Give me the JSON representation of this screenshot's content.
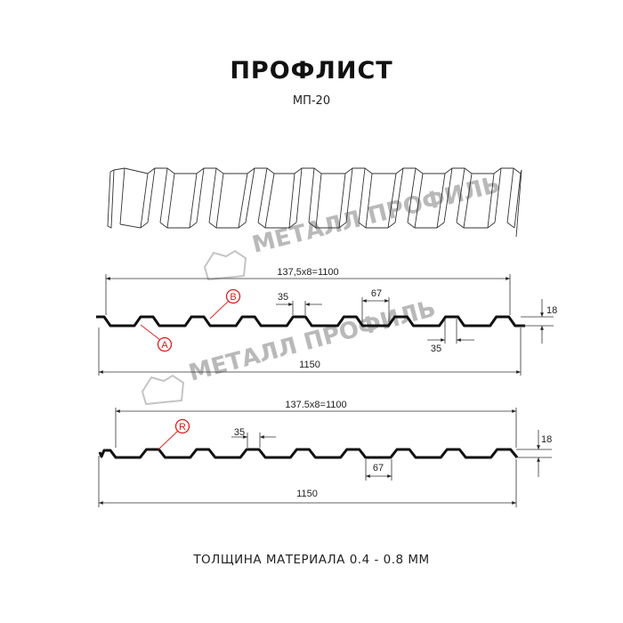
{
  "title": "ПРОФЛИСТ",
  "subtitle": "МП-20",
  "footer": "ТОЛЩИНА МАТЕРИАЛА 0.4 - 0.8 ММ",
  "watermark": "МЕТАЛЛ ПРОФИЛЬ",
  "colors": {
    "profile": "#111111",
    "marker": "#e01b1b",
    "watermark": "#b9b9b9"
  },
  "profile_a": {
    "pitch_label": "137,5x8=1100",
    "width_label": "1150",
    "rib_top_label": "35",
    "rib_bottom_label": "35",
    "valley_label": "67",
    "height_label": "18",
    "markers": [
      "A",
      "B"
    ]
  },
  "profile_b": {
    "pitch_label": "137.5x8=1100",
    "width_label": "1150",
    "rib_top_label": "35",
    "valley_label": "67",
    "height_label": "18",
    "markers": [
      "R"
    ]
  }
}
